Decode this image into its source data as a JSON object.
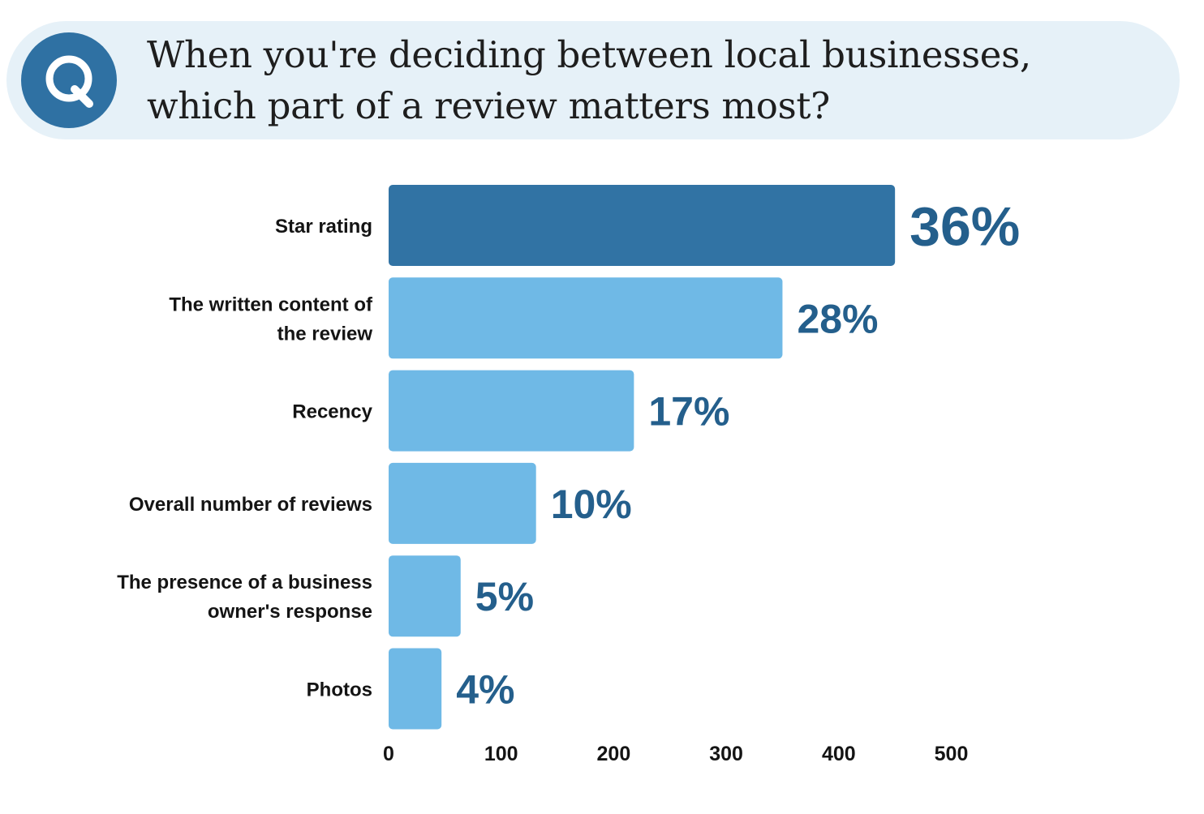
{
  "question": {
    "badge_letter": "Q",
    "badge_icon": "q-letter-icon",
    "title_line1": "When you're deciding between local businesses,",
    "title_line2": "which part of a review matters most?"
  },
  "colors": {
    "banner_bg": "#e6f1f8",
    "badge": "#2f71a3",
    "highlight_bar": "#3173a4",
    "bar": "#6fb9e6",
    "value_text": "#245f8c"
  },
  "chart_data": {
    "type": "bar",
    "orientation": "horizontal",
    "title": "",
    "xlabel": "",
    "ylabel": "",
    "categories": [
      [
        "Star rating"
      ],
      [
        "The written content of",
        "the review"
      ],
      [
        "Recency"
      ],
      [
        "Overall number of reviews"
      ],
      [
        "The presence of a business",
        "owner's response"
      ],
      [
        "Photos"
      ]
    ],
    "values": [
      450,
      350,
      218,
      131,
      64,
      47
    ],
    "value_labels": [
      "36%",
      "28%",
      "17%",
      "10%",
      "5%",
      "4%"
    ],
    "highlight_index": 0,
    "xlim": [
      0,
      500
    ],
    "xticks": [
      "0",
      "100",
      "200",
      "300",
      "400",
      "500"
    ],
    "grid": false,
    "legend": "none"
  }
}
